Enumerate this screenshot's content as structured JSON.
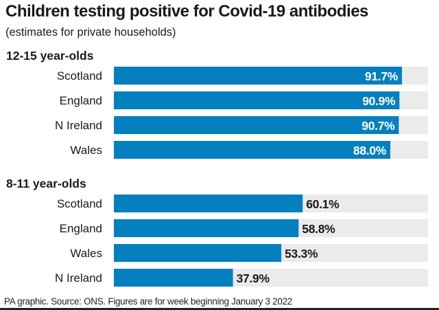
{
  "chart_data": {
    "type": "bar",
    "title": "Children testing positive for Covid-19 antibodies",
    "subtitle": "(estimates for private households)",
    "xlim": [
      0,
      100
    ],
    "groups": [
      {
        "name": "12-15 year-olds",
        "categories": [
          "Scotland",
          "England",
          "N Ireland",
          "Wales"
        ],
        "values": [
          91.7,
          90.9,
          90.7,
          88.0
        ],
        "labels": [
          "91.7%",
          "90.9%",
          "90.7%",
          "88.0%"
        ],
        "label_position": "inside"
      },
      {
        "name": "8-11 year-olds",
        "categories": [
          "Scotland",
          "England",
          "Wales",
          "N Ireland"
        ],
        "values": [
          60.1,
          58.8,
          53.3,
          37.9
        ],
        "labels": [
          "60.1%",
          "58.8%",
          "53.3%",
          "37.9%"
        ],
        "label_position": "outside"
      }
    ],
    "footer": "PA graphic. Source: ONS. Figures are for week beginning January 3 2022"
  },
  "colors": {
    "bar": "#0480bf",
    "track": "#ebebeb",
    "text": "#1a1a1a",
    "inside_label": "#ffffff"
  }
}
